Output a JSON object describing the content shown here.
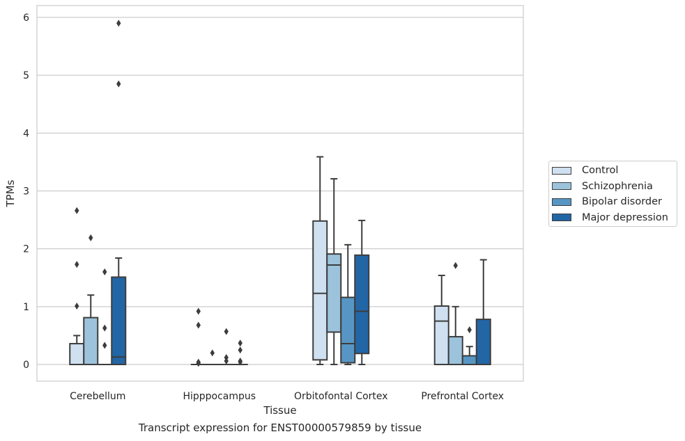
{
  "chart_data": {
    "type": "box",
    "caption": "Transcript expression for ENST00000579859 by tissue",
    "xlabel": "Tissue",
    "ylabel": "TPMs",
    "ylim": [
      -0.28,
      6.2
    ],
    "yticks": [
      0,
      1,
      2,
      3,
      4,
      5,
      6
    ],
    "grid": true,
    "legend_position": "right",
    "categories": [
      "Cerebellum",
      "Hipppocampus",
      "Orbitofontal Cortex",
      "Prefrontal Cortex"
    ],
    "series": [
      {
        "name": "Control",
        "color": "#cfe0f0",
        "boxes": [
          {
            "whislo": 0,
            "q1": 0,
            "med": 0,
            "q3": 0.36,
            "whishi": 0.5,
            "fliers": [
              1.01,
              1.73,
              2.66
            ]
          },
          {
            "whislo": 0,
            "q1": 0,
            "med": 0,
            "q3": 0,
            "whishi": 0,
            "fliers": [
              0.02,
              0.04,
              0.68,
              0.92
            ]
          },
          {
            "whislo": 0,
            "q1": 0.08,
            "med": 1.23,
            "q3": 2.48,
            "whishi": 3.59,
            "fliers": []
          },
          {
            "whislo": 0,
            "q1": 0,
            "med": 0.75,
            "q3": 1.01,
            "whishi": 1.54,
            "fliers": []
          }
        ]
      },
      {
        "name": "Schizophrenia",
        "color": "#9dc3dc",
        "boxes": [
          {
            "whislo": 0,
            "q1": 0,
            "med": 0,
            "q3": 0.81,
            "whishi": 1.2,
            "fliers": [
              2.19
            ]
          },
          {
            "whislo": 0,
            "q1": 0,
            "med": 0,
            "q3": 0,
            "whishi": 0,
            "fliers": [
              0.2
            ]
          },
          {
            "whislo": 0,
            "q1": 0.56,
            "med": 1.72,
            "q3": 1.91,
            "whishi": 3.21,
            "fliers": []
          },
          {
            "whislo": 0,
            "q1": 0,
            "med": 0,
            "q3": 0.48,
            "whishi": 1.0,
            "fliers": [
              1.71
            ]
          }
        ]
      },
      {
        "name": "Bipolar disorder",
        "color": "#5796c4",
        "boxes": [
          {
            "whislo": 0,
            "q1": 0,
            "med": 0,
            "q3": 0,
            "whishi": 0,
            "fliers": [
              0.33,
              0.63,
              1.6
            ]
          },
          {
            "whislo": 0,
            "q1": 0,
            "med": 0,
            "q3": 0,
            "whishi": 0,
            "fliers": [
              0.06,
              0.12,
              0.57
            ]
          },
          {
            "whislo": 0,
            "q1": 0.03,
            "med": 0.36,
            "q3": 1.16,
            "whishi": 2.07,
            "fliers": []
          },
          {
            "whislo": 0,
            "q1": 0,
            "med": 0,
            "q3": 0.15,
            "whishi": 0.31,
            "fliers": [
              0.6
            ]
          }
        ]
      },
      {
        "name": "Major depression",
        "color": "#2266a6",
        "boxes": [
          {
            "whislo": 0,
            "q1": 0,
            "med": 0.13,
            "q3": 1.51,
            "whishi": 1.84,
            "fliers": [
              4.85,
              5.9
            ]
          },
          {
            "whislo": 0,
            "q1": 0,
            "med": 0,
            "q3": 0,
            "whishi": 0,
            "fliers": [
              0.04,
              0.06,
              0.25,
              0.37
            ]
          },
          {
            "whislo": 0,
            "q1": 0.19,
            "med": 0.92,
            "q3": 1.89,
            "whishi": 2.49,
            "fliers": []
          },
          {
            "whislo": 0,
            "q1": 0,
            "med": 0,
            "q3": 0.78,
            "whishi": 1.81,
            "fliers": []
          }
        ]
      }
    ]
  }
}
